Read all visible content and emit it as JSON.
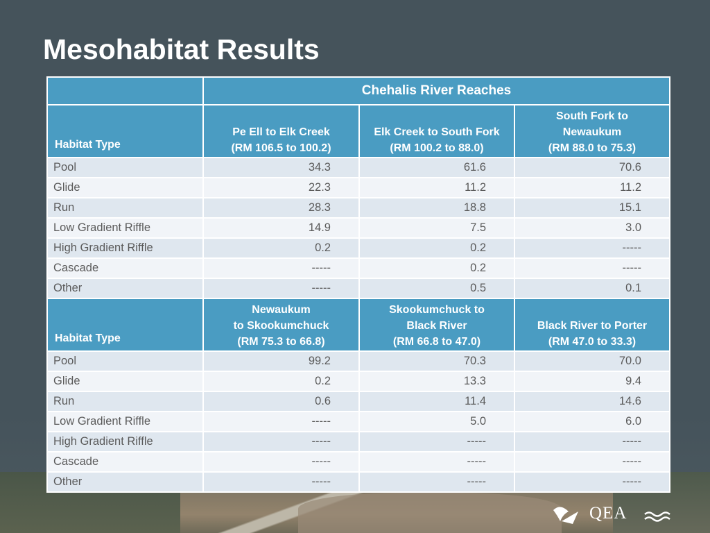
{
  "title": "Mesohabitat Results",
  "logo": {
    "text": "QEA"
  },
  "table": {
    "group_header": "Chehalis River Reaches",
    "section1": {
      "habitat_label": "Habitat Type",
      "columns": [
        {
          "line1": "Pe Ell to Elk Creek",
          "line2": "(RM 106.5 to 100.2)"
        },
        {
          "line1": "Elk Creek to South Fork",
          "line2": "(RM 100.2 to 88.0)"
        },
        {
          "line0": "South Fork to",
          "line1": "Newaukum",
          "line2": "(RM 88.0 to 75.3)"
        }
      ],
      "rows": [
        {
          "label": "Pool",
          "v": [
            "34.3",
            "61.6",
            "70.6"
          ]
        },
        {
          "label": "Glide",
          "v": [
            "22.3",
            "11.2",
            "11.2"
          ]
        },
        {
          "label": "Run",
          "v": [
            "28.3",
            "18.8",
            "15.1"
          ]
        },
        {
          "label": "Low Gradient Riffle",
          "v": [
            "14.9",
            "7.5",
            "3.0"
          ]
        },
        {
          "label": "High Gradient Riffle",
          "v": [
            "0.2",
            "0.2",
            "-----"
          ]
        },
        {
          "label": "Cascade",
          "v": [
            "-----",
            "0.2",
            "-----"
          ]
        },
        {
          "label": "Other",
          "v": [
            "-----",
            "0.5",
            "0.1"
          ]
        }
      ]
    },
    "section2": {
      "habitat_label": "Habitat Type",
      "columns": [
        {
          "line0": "Newaukum",
          "line1": "to Skookumchuck",
          "line2": "(RM 75.3 to 66.8)"
        },
        {
          "line0": "Skookumchuck to",
          "line1": "Black River",
          "line2": "(RM 66.8 to 47.0)"
        },
        {
          "line1": "Black River to Porter",
          "line2": "(RM 47.0 to 33.3)"
        }
      ],
      "rows": [
        {
          "label": "Pool",
          "v": [
            "99.2",
            "70.3",
            "70.0"
          ]
        },
        {
          "label": "Glide",
          "v": [
            "0.2",
            "13.3",
            "9.4"
          ]
        },
        {
          "label": "Run",
          "v": [
            "0.6",
            "11.4",
            "14.6"
          ]
        },
        {
          "label": "Low Gradient Riffle",
          "v": [
            "-----",
            "5.0",
            "6.0"
          ]
        },
        {
          "label": "High Gradient Riffle",
          "v": [
            "-----",
            "-----",
            "-----"
          ]
        },
        {
          "label": "Cascade",
          "v": [
            "-----",
            "-----",
            "-----"
          ]
        },
        {
          "label": "Other",
          "v": [
            "-----",
            "-----",
            "-----"
          ]
        }
      ]
    }
  }
}
